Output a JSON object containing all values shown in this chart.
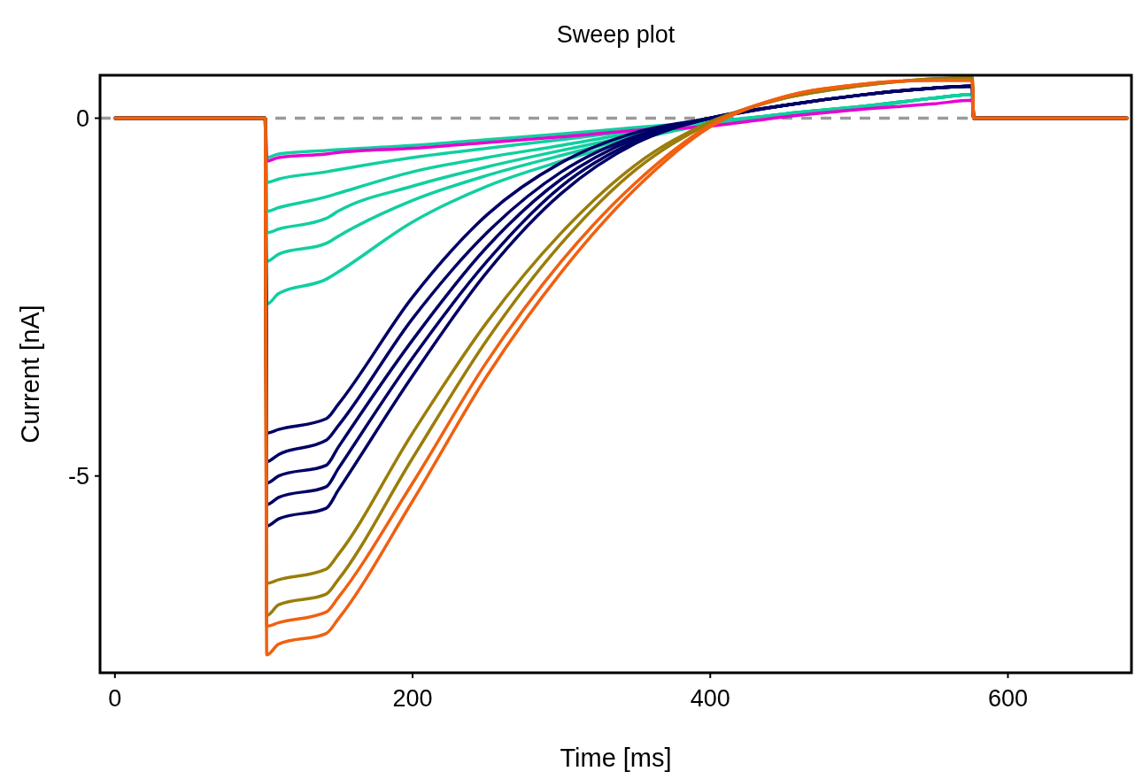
{
  "chart_data": {
    "type": "line",
    "title": "Sweep plot",
    "xlabel": "Time [ms]",
    "ylabel": "Current [nA]",
    "x": [
      0,
      101,
      102,
      110,
      142,
      150,
      200,
      250,
      300,
      350,
      400,
      450,
      500,
      550,
      576,
      577,
      680
    ],
    "xlim": [
      -10,
      683
    ],
    "ylim": [
      -7.75,
      0.6
    ],
    "xticks": [
      0,
      200,
      400,
      600
    ],
    "yticks": [
      -5,
      0
    ],
    "grid": false,
    "ref_lines": [
      {
        "axis": "y",
        "value": 0,
        "color": "#9a9a9a",
        "line_style": "dashed"
      }
    ],
    "series": [
      {
        "color": "#10cfa0",
        "values": [
          0,
          0,
          -0.55,
          -0.5,
          -0.45,
          -0.44,
          -0.38,
          -0.3,
          -0.22,
          -0.13,
          -0.05,
          0.04,
          0.14,
          0.28,
          0.33,
          0,
          0
        ]
      },
      {
        "color": "#10cfa0",
        "values": [
          0,
          0,
          -0.9,
          -0.85,
          -0.75,
          -0.72,
          -0.55,
          -0.42,
          -0.3,
          -0.17,
          -0.05,
          0.05,
          0.15,
          0.28,
          0.33,
          0,
          0
        ]
      },
      {
        "color": "#10cfa0",
        "values": [
          0,
          0,
          -1.3,
          -1.25,
          -1.1,
          -1.05,
          -0.75,
          -0.55,
          -0.38,
          -0.2,
          -0.06,
          0.05,
          0.15,
          0.28,
          0.33,
          0,
          0
        ]
      },
      {
        "color": "#10cfa0",
        "values": [
          0,
          0,
          -1.6,
          -1.55,
          -1.4,
          -1.3,
          -0.95,
          -0.68,
          -0.45,
          -0.24,
          -0.07,
          0.06,
          0.16,
          0.28,
          0.33,
          0,
          0
        ]
      },
      {
        "color": "#10cfa0",
        "values": [
          0,
          0,
          -2.0,
          -1.9,
          -1.75,
          -1.65,
          -1.15,
          -0.8,
          -0.52,
          -0.27,
          -0.08,
          0.06,
          0.16,
          0.28,
          0.33,
          0,
          0
        ]
      },
      {
        "color": "#10cfa0",
        "values": [
          0,
          0,
          -2.6,
          -2.45,
          -2.25,
          -2.15,
          -1.45,
          -0.95,
          -0.6,
          -0.3,
          -0.08,
          0.06,
          0.16,
          0.28,
          0.33,
          0,
          0
        ]
      },
      {
        "color": "#e800d0",
        "values": [
          0,
          0,
          -0.6,
          -0.55,
          -0.5,
          -0.48,
          -0.42,
          -0.34,
          -0.26,
          -0.17,
          -0.11,
          0.02,
          0.12,
          0.2,
          0.25,
          0,
          0
        ]
      },
      {
        "color": "#000066",
        "values": [
          0,
          0,
          -4.4,
          -4.35,
          -4.2,
          -4.0,
          -2.5,
          -1.35,
          -0.62,
          -0.2,
          0,
          0.18,
          0.32,
          0.42,
          0.45,
          0,
          0
        ]
      },
      {
        "color": "#000066",
        "values": [
          0,
          0,
          -4.8,
          -4.7,
          -4.5,
          -4.3,
          -2.8,
          -1.6,
          -0.75,
          -0.25,
          0,
          0.18,
          0.32,
          0.42,
          0.45,
          0,
          0
        ]
      },
      {
        "color": "#000066",
        "values": [
          0,
          0,
          -5.1,
          -5.0,
          -4.85,
          -4.6,
          -3.1,
          -1.8,
          -0.85,
          -0.28,
          0,
          0.18,
          0.32,
          0.42,
          0.45,
          0,
          0
        ]
      },
      {
        "color": "#000066",
        "values": [
          0,
          0,
          -5.4,
          -5.3,
          -5.15,
          -4.9,
          -3.35,
          -2.0,
          -0.95,
          -0.32,
          0,
          0.18,
          0.32,
          0.42,
          0.45,
          0,
          0
        ]
      },
      {
        "color": "#000066",
        "values": [
          0,
          0,
          -5.7,
          -5.6,
          -5.45,
          -5.2,
          -3.6,
          -2.15,
          -1.05,
          -0.35,
          0,
          0.18,
          0.32,
          0.42,
          0.45,
          0,
          0
        ]
      },
      {
        "color": "#9a7d0a",
        "values": [
          0,
          0,
          -6.5,
          -6.45,
          -6.3,
          -6.1,
          -4.4,
          -2.85,
          -1.6,
          -0.65,
          -0.05,
          0.28,
          0.45,
          0.55,
          0.57,
          0,
          0
        ]
      },
      {
        "color": "#9a7d0a",
        "values": [
          0,
          0,
          -6.95,
          -6.8,
          -6.65,
          -6.45,
          -4.75,
          -3.1,
          -1.75,
          -0.72,
          -0.07,
          0.28,
          0.45,
          0.55,
          0.57,
          0,
          0
        ]
      },
      {
        "color": "#f06010",
        "values": [
          0,
          0,
          -7.1,
          -7.05,
          -6.9,
          -6.7,
          -5.1,
          -3.4,
          -2.0,
          -0.9,
          -0.1,
          0.3,
          0.47,
          0.53,
          0.53,
          0,
          0
        ]
      },
      {
        "color": "#f06010",
        "values": [
          0,
          0,
          -7.5,
          -7.35,
          -7.2,
          -7.0,
          -5.35,
          -3.6,
          -2.15,
          -0.98,
          -0.12,
          0.3,
          0.47,
          0.53,
          0.53,
          0,
          0
        ]
      }
    ]
  }
}
